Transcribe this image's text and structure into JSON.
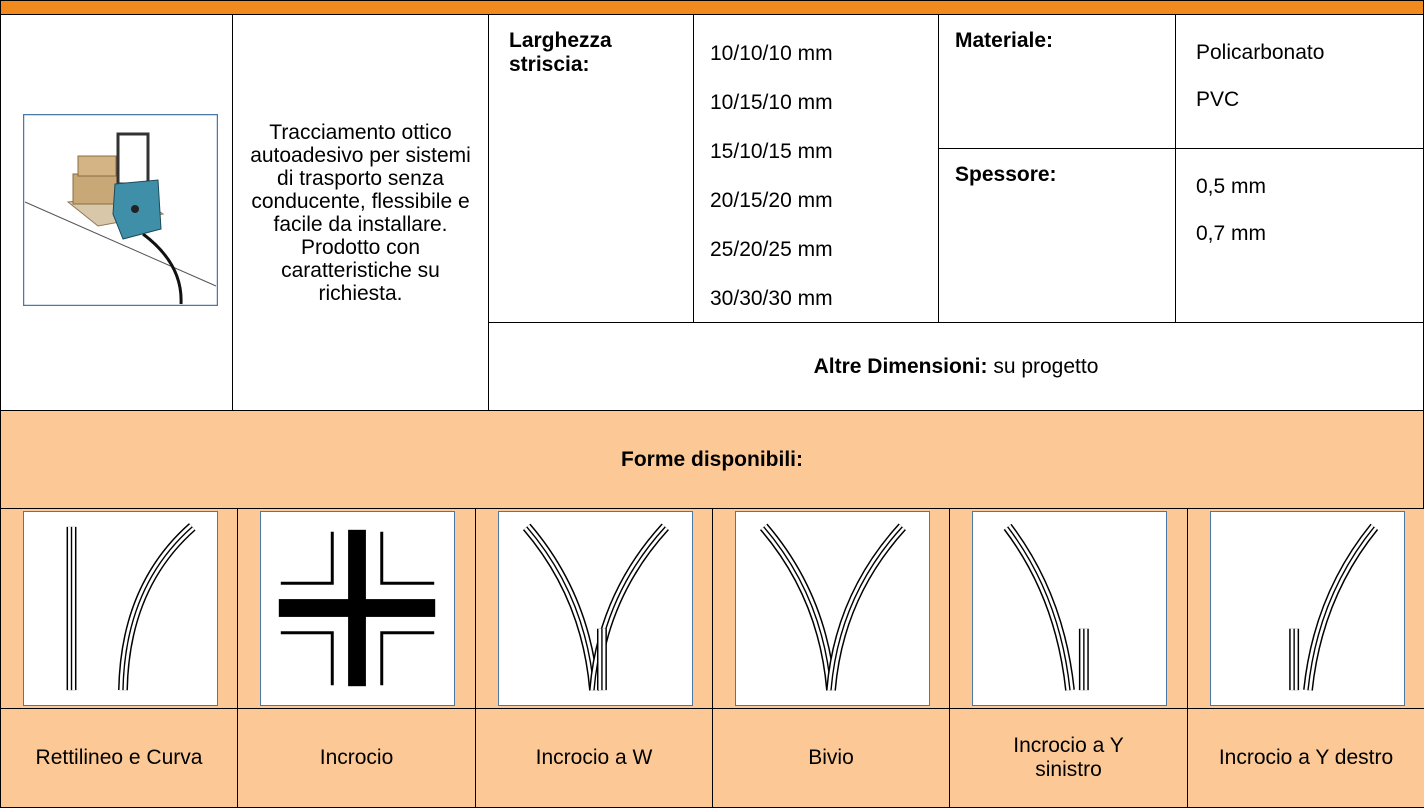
{
  "description": "Tracciamento ottico autoadesivo per sistemi di trasporto senza conducente, flessibile e facile da installare. Prodotto con caratteristiche su richiesta.",
  "width": {
    "label": "Larghezza striscia:",
    "values": [
      "10/10/10 mm",
      "10/15/10 mm",
      "15/10/15 mm",
      "20/15/20 mm",
      "25/20/25 mm",
      "30/30/30 mm"
    ]
  },
  "material": {
    "label": "Materiale:",
    "values": [
      "Policarbonato",
      "PVC"
    ]
  },
  "thickness": {
    "label": "Spessore:",
    "values": [
      "0,5 mm",
      "0,7 mm"
    ]
  },
  "other": {
    "label": "Altre Dimensioni:",
    "value": "su progetto"
  },
  "shapes": {
    "title": "Forme disponibili:",
    "items": [
      "Rettilineo e Curva",
      "Incrocio",
      "Incrocio a W",
      "Bivio",
      "Incrocio a Y sinistro",
      "Incrocio a Y destro"
    ]
  }
}
